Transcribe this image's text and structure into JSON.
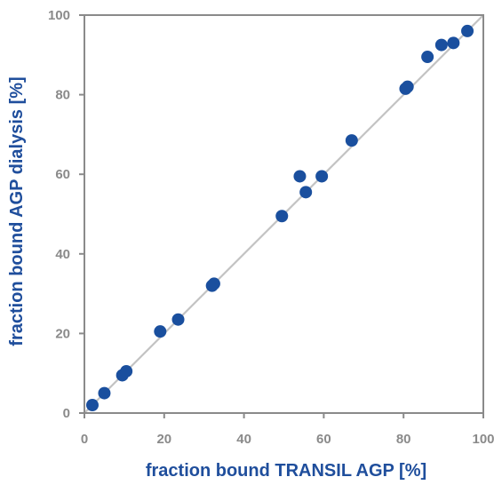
{
  "chart_data": {
    "type": "scatter",
    "title": "",
    "xlabel": "fraction bound TRANSIL AGP [%]",
    "ylabel": "fraction bound AGP dialysis [%]",
    "xlim": [
      0,
      100
    ],
    "ylim": [
      0,
      100
    ],
    "xticks": [
      "0",
      "20",
      "40",
      "60",
      "80",
      "100"
    ],
    "yticks": [
      "0",
      "20",
      "40",
      "60",
      "80",
      "100"
    ],
    "grid": false,
    "reference_line": "y = x",
    "colors": {
      "marker": "#1a4f9e",
      "axis": "#8a8a8a",
      "reference_line": "#c3c3c3",
      "axis_title": "#1f4e9c"
    },
    "series": [
      {
        "x": [
          2,
          5,
          9.5,
          10.5,
          19,
          23.5,
          32,
          32.5,
          49.5,
          54,
          55.5,
          59.5,
          67,
          80.5,
          81,
          86,
          89.5,
          92.5,
          96
        ],
        "y": [
          2,
          5,
          9.5,
          10.5,
          20.5,
          23.5,
          32,
          32.5,
          49.5,
          59.5,
          55.5,
          59.5,
          68.5,
          81.5,
          82,
          89.5,
          92.5,
          93,
          96
        ]
      }
    ]
  }
}
